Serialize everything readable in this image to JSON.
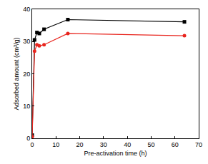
{
  "chart_data": {
    "type": "line",
    "x_label": "Pre-activation time (h)",
    "y_label": "Adsorbed amount (cm³/g)",
    "x": [
      0,
      1,
      2,
      3,
      5,
      15,
      64
    ],
    "series": [
      {
        "color": "#000000",
        "marker": "square",
        "line_style": "solid",
        "values": [
          1,
          30.5,
          32.8,
          32.5,
          33.8,
          36.8,
          36.1
        ]
      },
      {
        "color": "#e8251e",
        "marker": "circle",
        "line_style": "solid",
        "values": [
          0.5,
          27,
          29,
          28.7,
          29,
          32.5,
          31.8
        ]
      }
    ],
    "xlim": [
      0,
      70
    ],
    "xticks": [
      0,
      10,
      20,
      30,
      40,
      50,
      60,
      70
    ],
    "ylim": [
      0,
      40
    ],
    "yticks": [
      0,
      10,
      20,
      30,
      40
    ],
    "grid": false
  }
}
